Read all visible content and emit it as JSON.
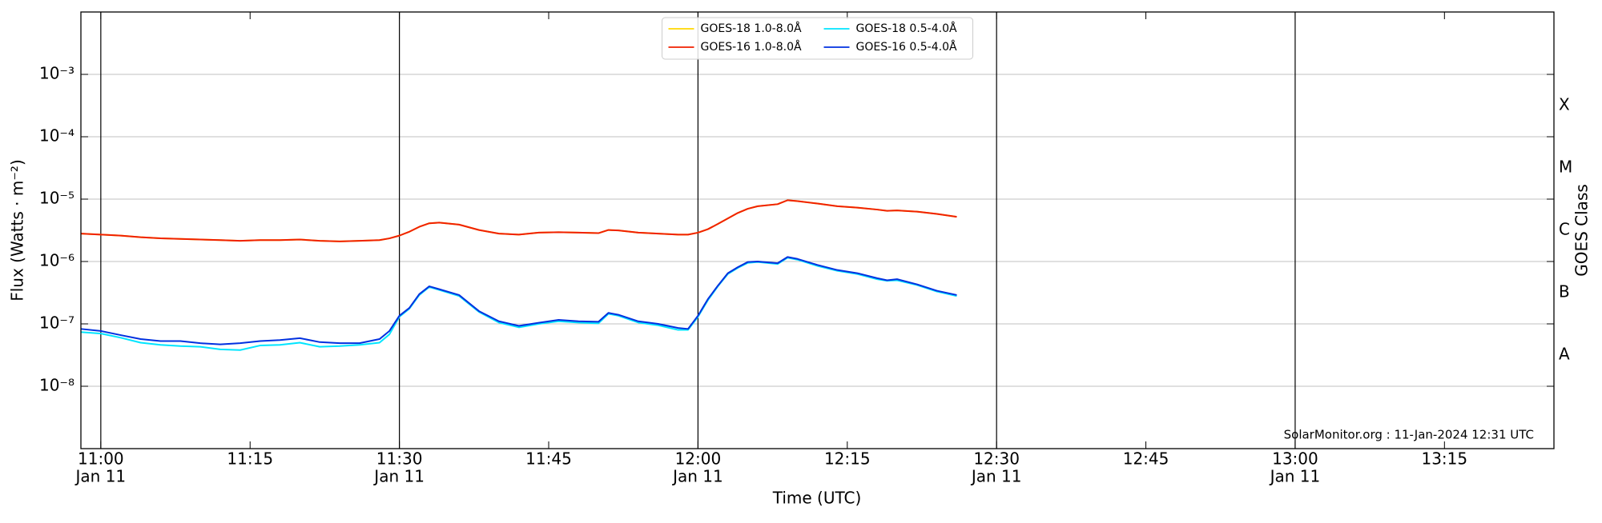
{
  "chart_data": {
    "type": "line",
    "xlabel": "Time (UTC)",
    "ylabel": "Flux (Watts · m⁻²)",
    "y2label": "GOES Class",
    "annotation": "SolarMonitor.org : 11-Jan-2024 12:31 UTC",
    "yscale": "log",
    "grid": true,
    "legend": "upper center",
    "xlim": [
      "10:58",
      "13:26"
    ],
    "ylim": [
      1e-09,
      0.01
    ],
    "y2lim": [
      1e-09,
      0.01
    ],
    "xticks": [
      {
        "value": "11:00",
        "label": [
          "11:00",
          "Jan 11"
        ]
      },
      "11:15",
      {
        "value": "11:30",
        "label": [
          "11:30",
          "Jan 11"
        ]
      },
      "11:45",
      {
        "value": "12:00",
        "label": [
          "12:00",
          "Jan 11"
        ]
      },
      "12:15",
      {
        "value": "12:30",
        "label": [
          "12:30",
          "Jan 11"
        ]
      },
      "12:45",
      {
        "value": "13:00",
        "label": [
          "13:00",
          "Jan 11"
        ]
      },
      "13:15"
    ],
    "yticks": [
      {
        "value": 1e-08,
        "label": "10⁻⁸"
      },
      {
        "value": 1e-07,
        "label": "10⁻⁷"
      },
      {
        "value": 1e-06,
        "label": "10⁻⁶"
      },
      {
        "value": 1e-05,
        "label": "10⁻⁵"
      },
      {
        "value": 0.0001,
        "label": "10⁻⁴"
      },
      {
        "value": 0.001,
        "label": "10⁻³"
      }
    ],
    "y2ticks": [
      {
        "value": 3.16e-08,
        "label": "A"
      },
      {
        "value": 3.16e-07,
        "label": "B"
      },
      {
        "value": 3.16e-06,
        "label": "C"
      },
      {
        "value": 3.16e-05,
        "label": "M"
      },
      {
        "value": 0.000316,
        "label": "X"
      }
    ],
    "x": [
      "10:58",
      "11:00",
      "11:02",
      "11:04",
      "11:06",
      "11:08",
      "11:10",
      "11:12",
      "11:14",
      "11:16",
      "11:18",
      "11:20",
      "11:22",
      "11:24",
      "11:26",
      "11:28",
      "11:29",
      "11:30",
      "11:31",
      "11:32",
      "11:33",
      "11:34",
      "11:36",
      "11:38",
      "11:40",
      "11:42",
      "11:44",
      "11:46",
      "11:48",
      "11:50",
      "11:51",
      "11:52",
      "11:54",
      "11:56",
      "11:58",
      "11:59",
      "12:00",
      "12:01",
      "12:02",
      "12:03",
      "12:04",
      "12:05",
      "12:06",
      "12:08",
      "12:09",
      "12:10",
      "12:12",
      "12:14",
      "12:16",
      "12:18",
      "12:19",
      "12:20",
      "12:22",
      "12:24",
      "12:26"
    ],
    "series": [
      {
        "name": "GOES-18 1.0-8.0Å",
        "color": "#ffd700",
        "values": [
          2.8e-06,
          2.7e-06,
          2.6e-06,
          2.45e-06,
          2.35e-06,
          2.3e-06,
          2.25e-06,
          2.2e-06,
          2.15e-06,
          2.2e-06,
          2.2e-06,
          2.25e-06,
          2.15e-06,
          2.1e-06,
          2.15e-06,
          2.2e-06,
          2.35e-06,
          2.6e-06,
          3e-06,
          3.6e-06,
          4.1e-06,
          4.2e-06,
          3.9e-06,
          3.2e-06,
          2.8e-06,
          2.7e-06,
          2.9e-06,
          2.95e-06,
          2.9e-06,
          2.85e-06,
          3.2e-06,
          3.15e-06,
          2.9e-06,
          2.8e-06,
          2.7e-06,
          2.7e-06,
          2.9e-06,
          3.3e-06,
          4e-06,
          4.9e-06,
          6e-06,
          7e-06,
          7.7e-06,
          8.3e-06,
          9.6e-06,
          9.3e-06,
          8.5e-06,
          7.7e-06,
          7.3e-06,
          6.8e-06,
          6.5e-06,
          6.6e-06,
          6.3e-06,
          5.8e-06,
          5.2e-06
        ]
      },
      {
        "name": "GOES-16 1.0-8.0Å",
        "color": "#f02000",
        "values": [
          2.8e-06,
          2.7e-06,
          2.6e-06,
          2.45e-06,
          2.35e-06,
          2.3e-06,
          2.25e-06,
          2.2e-06,
          2.15e-06,
          2.2e-06,
          2.2e-06,
          2.25e-06,
          2.15e-06,
          2.1e-06,
          2.15e-06,
          2.2e-06,
          2.35e-06,
          2.6e-06,
          3e-06,
          3.6e-06,
          4.1e-06,
          4.2e-06,
          3.9e-06,
          3.2e-06,
          2.8e-06,
          2.7e-06,
          2.9e-06,
          2.95e-06,
          2.9e-06,
          2.85e-06,
          3.2e-06,
          3.15e-06,
          2.9e-06,
          2.8e-06,
          2.7e-06,
          2.7e-06,
          2.9e-06,
          3.3e-06,
          4e-06,
          4.9e-06,
          6e-06,
          7e-06,
          7.7e-06,
          8.3e-06,
          9.6e-06,
          9.3e-06,
          8.5e-06,
          7.7e-06,
          7.3e-06,
          6.8e-06,
          6.5e-06,
          6.6e-06,
          6.3e-06,
          5.8e-06,
          5.2e-06
        ]
      },
      {
        "name": "GOES-18 0.5-4.0Å",
        "color": "#00e5ff",
        "values": [
          7.4e-08,
          7e-08,
          6e-08,
          5e-08,
          4.6e-08,
          4.4e-08,
          4.3e-08,
          3.9e-08,
          3.8e-08,
          4.5e-08,
          4.6e-08,
          5e-08,
          4.3e-08,
          4.4e-08,
          4.6e-08,
          5e-08,
          6.8e-08,
          1.3e-07,
          1.75e-07,
          2.9e-07,
          3.9e-07,
          3.5e-07,
          2.8e-07,
          1.55e-07,
          1.05e-07,
          8.8e-08,
          1e-07,
          1.1e-07,
          1.05e-07,
          1.02e-07,
          1.45e-07,
          1.35e-07,
          1.05e-07,
          9.5e-08,
          8e-08,
          8e-08,
          1.3e-07,
          2.4e-07,
          4e-07,
          6.3e-07,
          7.9e-07,
          9.5e-07,
          9.8e-07,
          9.1e-07,
          1.15e-06,
          1.07e-06,
          8.5e-07,
          7.1e-07,
          6.3e-07,
          5.2e-07,
          4.9e-07,
          5e-07,
          4.2e-07,
          3.3e-07,
          2.8e-07
        ]
      },
      {
        "name": "GOES-16 0.5-4.0Å",
        "color": "#0030e0",
        "values": [
          8.3e-08,
          7.7e-08,
          6.6e-08,
          5.7e-08,
          5.3e-08,
          5.3e-08,
          4.9e-08,
          4.7e-08,
          4.9e-08,
          5.3e-08,
          5.5e-08,
          5.9e-08,
          5.1e-08,
          4.9e-08,
          4.9e-08,
          5.7e-08,
          7.7e-08,
          1.35e-07,
          1.8e-07,
          3e-07,
          4e-07,
          3.6e-07,
          2.9e-07,
          1.6e-07,
          1.1e-07,
          9.3e-08,
          1.04e-07,
          1.16e-07,
          1.1e-07,
          1.08e-07,
          1.5e-07,
          1.4e-07,
          1.1e-07,
          1e-07,
          8.6e-08,
          8.3e-08,
          1.35e-07,
          2.5e-07,
          4.1e-07,
          6.5e-07,
          8.1e-07,
          9.8e-07,
          1e-06,
          9.4e-07,
          1.18e-06,
          1.1e-06,
          8.8e-07,
          7.3e-07,
          6.5e-07,
          5.4e-07,
          5e-07,
          5.2e-07,
          4.3e-07,
          3.4e-07,
          2.9e-07
        ]
      }
    ]
  }
}
